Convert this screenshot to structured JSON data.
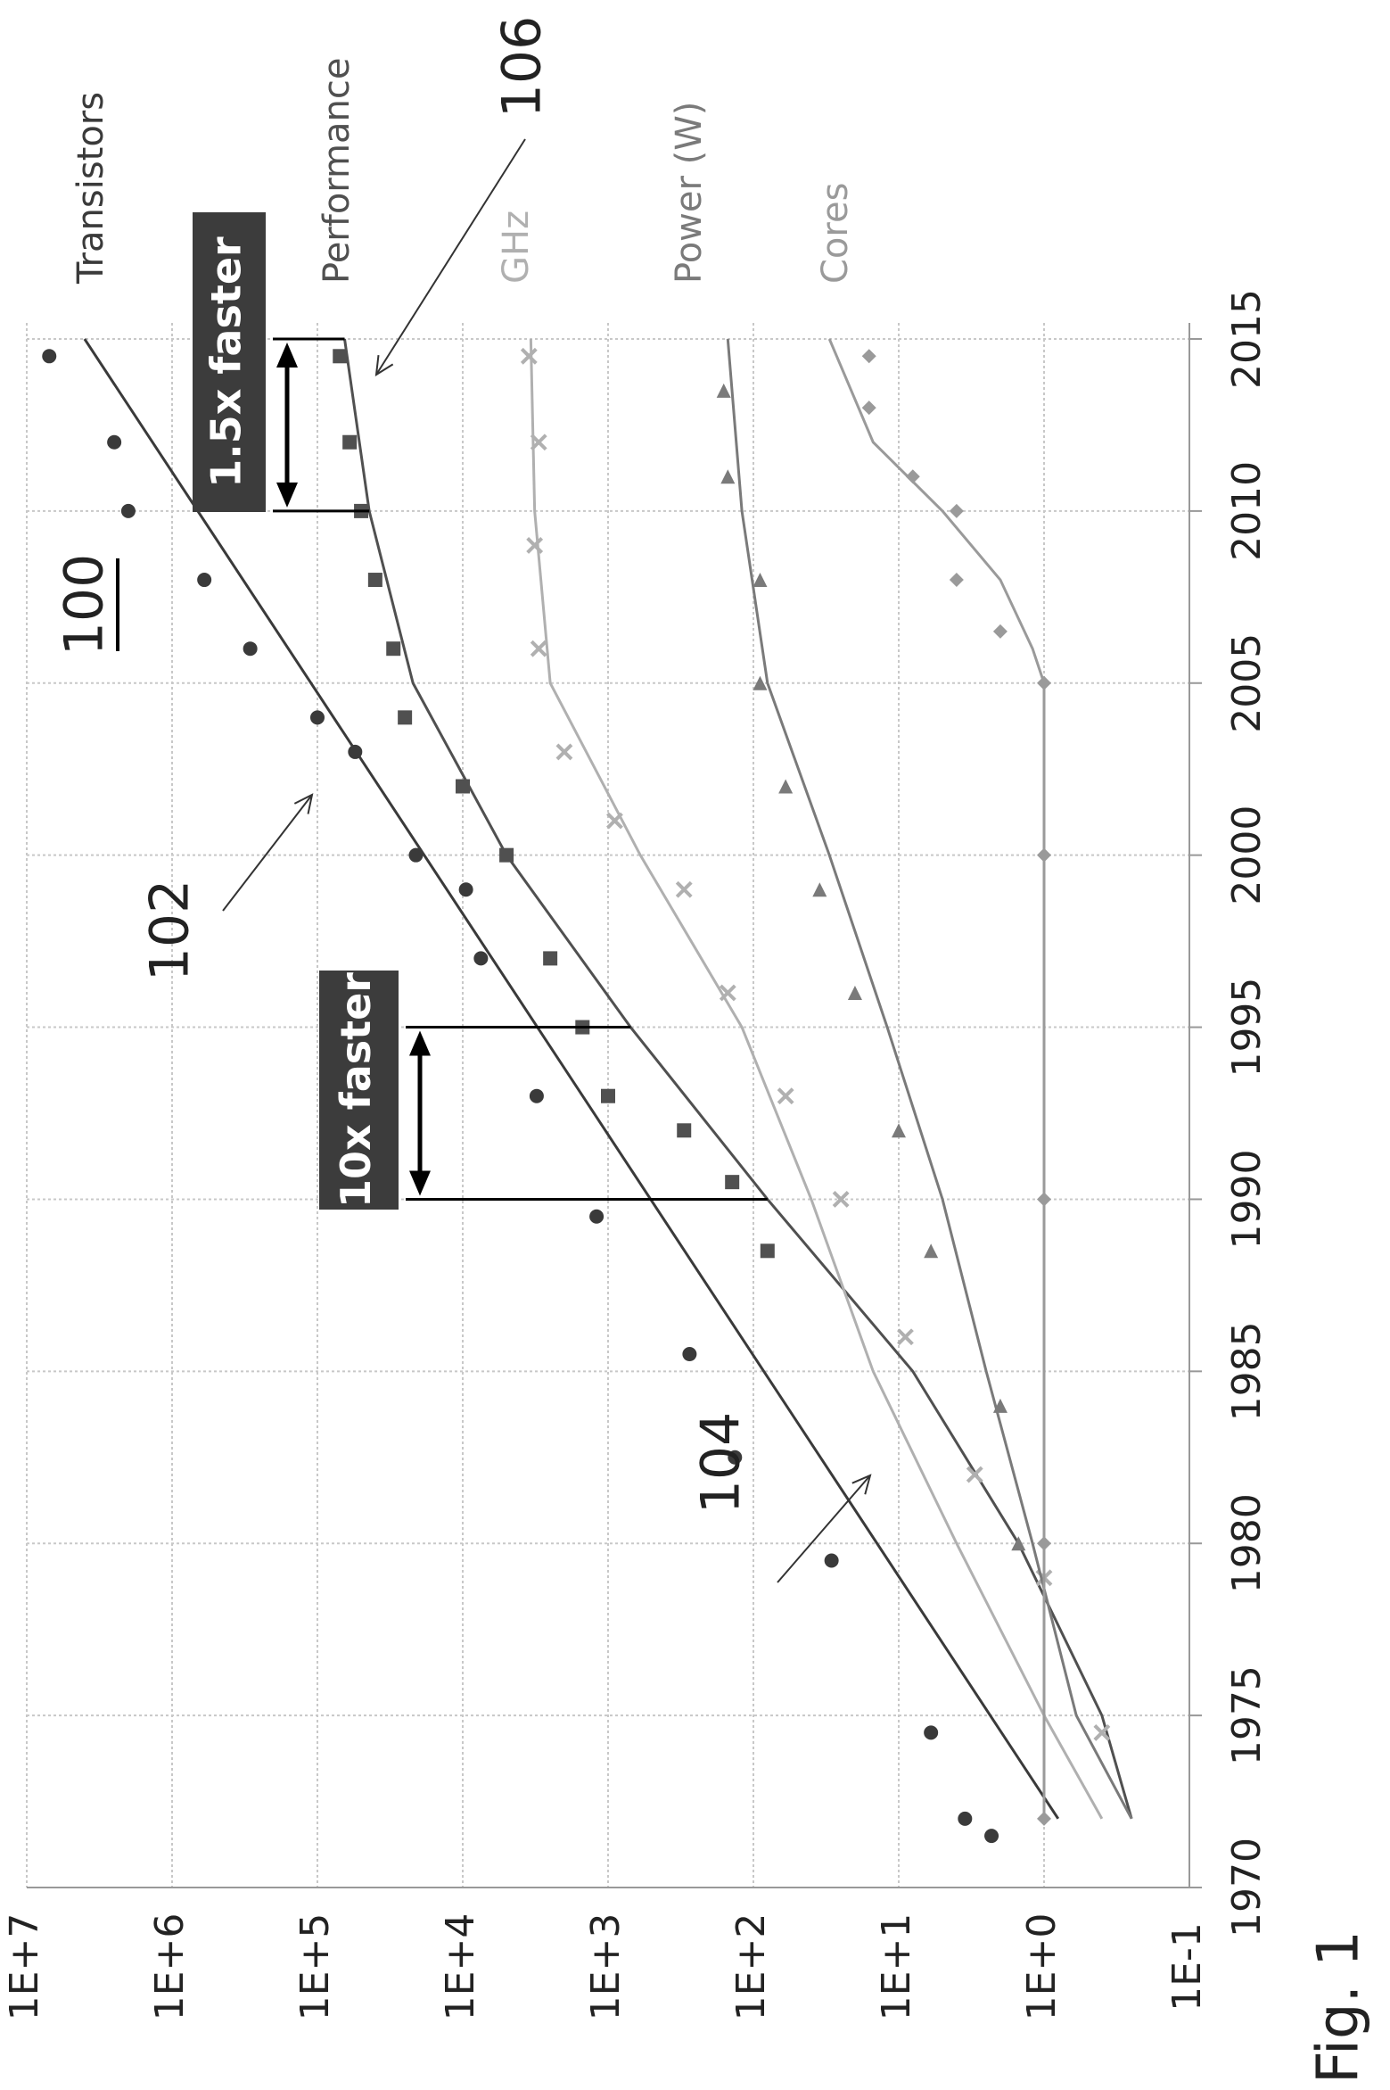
{
  "chart_data": {
    "type": "scatter",
    "log_scale": true,
    "grid": true,
    "xlim": [
      1970,
      2015
    ],
    "xticks": [
      1970,
      1975,
      1980,
      1985,
      1990,
      1995,
      2000,
      2005,
      2010,
      2015
    ],
    "ylim": [
      0.1,
      10000000
    ],
    "yticks": [
      {
        "value": 0.1,
        "label": "1E-1"
      },
      {
        "value": 1,
        "label": "1E+0"
      },
      {
        "value": 10,
        "label": "1E+1"
      },
      {
        "value": 100,
        "label": "1E+2"
      },
      {
        "value": 1000,
        "label": "1E+3"
      },
      {
        "value": 10000,
        "label": "1E+4"
      },
      {
        "value": 100000,
        "label": "1E+5"
      },
      {
        "value": 1000000,
        "label": "1E+6"
      },
      {
        "value": 10000000,
        "label": "1E+7"
      }
    ],
    "series": [
      {
        "name": "Transistors",
        "color": "#3a3a3a",
        "marker": "circle",
        "x": [
          1971.5,
          1972,
          1974.5,
          1979.5,
          1982.5,
          1985.5,
          1989.5,
          1993,
          1997,
          1999,
          2000,
          2003,
          2004,
          2006,
          2008,
          2010,
          2012,
          2014.5
        ],
        "values": [
          2.3,
          3.5,
          6,
          29,
          134,
          275,
          1200,
          3100,
          7500,
          9500,
          21000,
          55000,
          100000,
          290000,
          600000,
          2000000,
          2500000,
          7000000
        ],
        "trend_x": [
          1972,
          2015
        ],
        "trend_values": [
          0.8,
          4000000
        ]
      },
      {
        "name": "Performance",
        "color": "#505050",
        "marker": "square",
        "x": [
          1988.5,
          1990.5,
          1992,
          1993,
          1995,
          1997,
          2000,
          2002,
          2004,
          2006,
          2008,
          2010,
          2012,
          2014.5
        ],
        "values": [
          80,
          140,
          300,
          1000,
          1500,
          2500,
          5000,
          10000,
          25000,
          30000,
          40000,
          50000,
          60000,
          70000
        ],
        "trend_x": [
          1972,
          1975,
          1980,
          1985,
          1990,
          1995,
          2000,
          2005,
          2010,
          2015
        ],
        "trend_values": [
          0.25,
          0.4,
          1.5,
          8,
          80,
          700,
          5000,
          22000,
          44000,
          65000
        ]
      },
      {
        "name": "GHz",
        "color": "#b0b0b0",
        "marker": "cross",
        "x": [
          1974.5,
          1979,
          1982,
          1986,
          1990,
          1993,
          1996,
          1999,
          2001,
          2003,
          2006,
          2009,
          2012,
          2014.5
        ],
        "values": [
          0.4,
          1,
          3,
          9,
          25,
          60,
          150,
          300,
          900,
          2000,
          3000,
          3200,
          3000,
          3500
        ],
        "trend_x": [
          1972,
          1975,
          1980,
          1985,
          1990,
          1995,
          2000,
          2005,
          2010,
          2015
        ],
        "trend_values": [
          0.4,
          1,
          4,
          15,
          40,
          120,
          600,
          2500,
          3200,
          3400
        ]
      },
      {
        "name": "Power (W)",
        "color": "#7a7a7a",
        "marker": "triangle",
        "x": [
          1980,
          1984,
          1988.5,
          1992,
          1996,
          1999,
          2002,
          2005,
          2008,
          2011,
          2013.5
        ],
        "values": [
          1.5,
          2,
          6,
          10,
          20,
          35,
          60,
          90,
          90,
          150,
          160
        ],
        "trend_x": [
          1972,
          1975,
          1980,
          1985,
          1990,
          1995,
          2000,
          2005,
          2010,
          2015
        ],
        "trend_values": [
          0.25,
          0.6,
          1.2,
          2.5,
          5,
          12,
          30,
          80,
          120,
          150
        ]
      },
      {
        "name": "Cores",
        "color": "#9a9a9a",
        "marker": "diamond",
        "x": [
          1972,
          1980,
          1990,
          2000,
          2005,
          2006.5,
          2008,
          2010,
          2011,
          2013,
          2014.5
        ],
        "values": [
          1,
          1,
          1,
          1,
          1,
          2,
          4,
          4,
          8,
          16,
          16
        ],
        "trend_x": [
          1972,
          2005,
          2006,
          2008,
          2010,
          2012,
          2015
        ],
        "trend_values": [
          1,
          1,
          1.2,
          2,
          5,
          15,
          30
        ]
      }
    ],
    "annotations": [
      {
        "text": "10x faster",
        "x": [
          1990,
          1995
        ],
        "values": [
          80,
          700
        ]
      },
      {
        "text": "1.5x faster",
        "x": [
          2010,
          2015
        ],
        "values": [
          44000,
          65000
        ]
      }
    ],
    "reference_numerals": [
      "100",
      "102",
      "104",
      "106"
    ],
    "figure_label": "Fig. 1"
  }
}
